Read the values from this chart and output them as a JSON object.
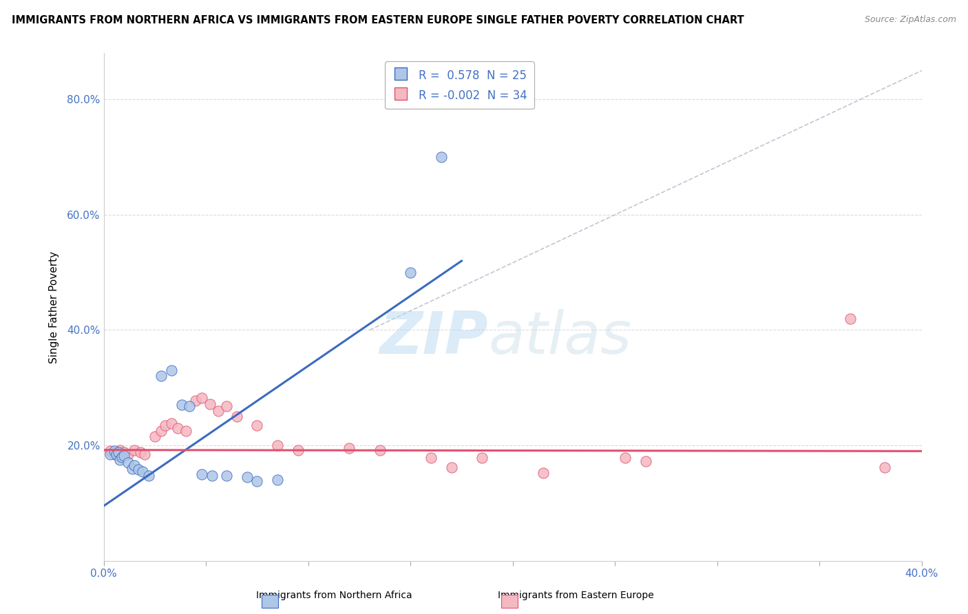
{
  "title": "IMMIGRANTS FROM NORTHERN AFRICA VS IMMIGRANTS FROM EASTERN EUROPE SINGLE FATHER POVERTY CORRELATION CHART",
  "source": "Source: ZipAtlas.com",
  "ylabel": "Single Father Poverty",
  "xlim": [
    0.0,
    0.4
  ],
  "ylim": [
    0.0,
    0.88
  ],
  "color_blue": "#aec6e8",
  "color_pink": "#f4b8c1",
  "line_blue": "#3a6bbf",
  "line_pink": "#e05070",
  "line_diag": "#b0b8c8",
  "watermark_zip": "ZIP",
  "watermark_atlas": "atlas",
  "blue_points": [
    [
      0.003,
      0.185
    ],
    [
      0.005,
      0.19
    ],
    [
      0.006,
      0.185
    ],
    [
      0.007,
      0.188
    ],
    [
      0.008,
      0.175
    ],
    [
      0.009,
      0.18
    ],
    [
      0.01,
      0.182
    ],
    [
      0.012,
      0.17
    ],
    [
      0.014,
      0.16
    ],
    [
      0.015,
      0.165
    ],
    [
      0.017,
      0.158
    ],
    [
      0.019,
      0.155
    ],
    [
      0.022,
      0.148
    ],
    [
      0.028,
      0.32
    ],
    [
      0.033,
      0.33
    ],
    [
      0.038,
      0.27
    ],
    [
      0.042,
      0.268
    ],
    [
      0.048,
      0.15
    ],
    [
      0.053,
      0.148
    ],
    [
      0.06,
      0.148
    ],
    [
      0.07,
      0.145
    ],
    [
      0.075,
      0.138
    ],
    [
      0.085,
      0.14
    ],
    [
      0.15,
      0.5
    ],
    [
      0.165,
      0.7
    ]
  ],
  "pink_points": [
    [
      0.003,
      0.19
    ],
    [
      0.005,
      0.185
    ],
    [
      0.006,
      0.188
    ],
    [
      0.007,
      0.182
    ],
    [
      0.008,
      0.192
    ],
    [
      0.01,
      0.188
    ],
    [
      0.012,
      0.185
    ],
    [
      0.015,
      0.192
    ],
    [
      0.018,
      0.188
    ],
    [
      0.02,
      0.185
    ],
    [
      0.025,
      0.215
    ],
    [
      0.028,
      0.225
    ],
    [
      0.03,
      0.235
    ],
    [
      0.033,
      0.238
    ],
    [
      0.036,
      0.23
    ],
    [
      0.04,
      0.225
    ],
    [
      0.045,
      0.278
    ],
    [
      0.048,
      0.282
    ],
    [
      0.052,
      0.272
    ],
    [
      0.056,
      0.26
    ],
    [
      0.06,
      0.268
    ],
    [
      0.065,
      0.25
    ],
    [
      0.075,
      0.235
    ],
    [
      0.085,
      0.2
    ],
    [
      0.095,
      0.192
    ],
    [
      0.12,
      0.195
    ],
    [
      0.135,
      0.192
    ],
    [
      0.16,
      0.178
    ],
    [
      0.17,
      0.162
    ],
    [
      0.185,
      0.178
    ],
    [
      0.215,
      0.152
    ],
    [
      0.255,
      0.178
    ],
    [
      0.265,
      0.172
    ],
    [
      0.365,
      0.42
    ],
    [
      0.382,
      0.162
    ]
  ],
  "blue_line_x": [
    0.0,
    0.175
  ],
  "blue_line_y": [
    0.095,
    0.52
  ],
  "pink_line_x": [
    0.0,
    0.4
  ],
  "pink_line_y": [
    0.192,
    0.19
  ],
  "diag_line_x": [
    0.13,
    0.4
  ],
  "diag_line_y": [
    0.4,
    0.85
  ]
}
